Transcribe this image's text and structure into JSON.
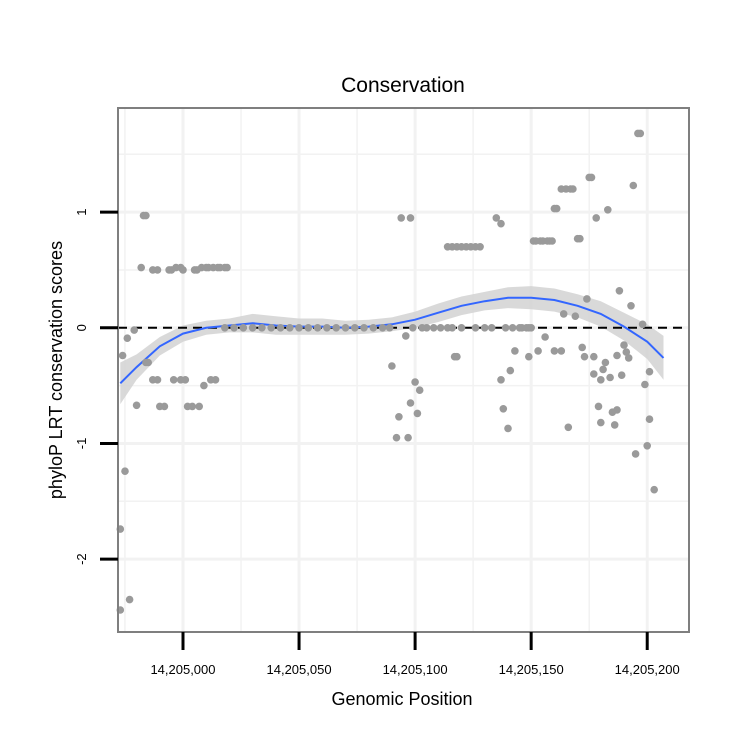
{
  "chart_data": {
    "type": "scatter",
    "title": "Conservation",
    "xlabel": "Genomic Position",
    "ylabel": "phyloP LRT conservation scores",
    "xlim": [
      14204972,
      14205218
    ],
    "ylim": [
      -2.63,
      1.9
    ],
    "xticks": [
      14205000,
      14205050,
      14205100,
      14205150,
      14205200
    ],
    "xtick_labels": [
      "14,205,000",
      "14,205,050",
      "14,205,100",
      "14,205,150",
      "14,205,200"
    ],
    "yticks": [
      -2,
      -1,
      0,
      1
    ],
    "ytick_labels": [
      "-2",
      "-1",
      "0",
      "1"
    ],
    "grid": true,
    "reference_line": {
      "y": 0,
      "style": "dashed",
      "color": "#000000"
    },
    "colors": {
      "points": "#9a9a9a",
      "smooth": "#3366ff",
      "ribbon": "#d2d2d2",
      "panel_border": "#7f7f7f",
      "grid": "#f2f2f2"
    },
    "series": [
      {
        "name": "scores",
        "kind": "points",
        "points": [
          [
            14204973,
            -1.74
          ],
          [
            14204973,
            -2.44
          ],
          [
            14204974,
            -0.24
          ],
          [
            14204975,
            -1.24
          ],
          [
            14204976,
            -0.09
          ],
          [
            14204977,
            -2.35
          ],
          [
            14204979,
            -0.02
          ],
          [
            14204980,
            -0.67
          ],
          [
            14204982,
            0.52
          ],
          [
            14204983,
            0.97
          ],
          [
            14204984,
            0.97
          ],
          [
            14204984,
            -0.3
          ],
          [
            14204985,
            -0.3
          ],
          [
            14204987,
            -0.45
          ],
          [
            14204987,
            0.5
          ],
          [
            14204989,
            0.5
          ],
          [
            14204989,
            -0.45
          ],
          [
            14204990,
            -0.68
          ],
          [
            14204992,
            -0.68
          ],
          [
            14204994,
            0.5
          ],
          [
            14204995,
            0.5
          ],
          [
            14204996,
            -0.45
          ],
          [
            14204997,
            0.52
          ],
          [
            14204999,
            0.52
          ],
          [
            14204999,
            -0.45
          ],
          [
            14205000,
            0.5
          ],
          [
            14205001,
            -0.45
          ],
          [
            14205002,
            -0.68
          ],
          [
            14205004,
            -0.68
          ],
          [
            14205005,
            0.5
          ],
          [
            14205006,
            0.5
          ],
          [
            14205007,
            -0.68
          ],
          [
            14205008,
            0.52
          ],
          [
            14205009,
            -0.5
          ],
          [
            14205010,
            0.52
          ],
          [
            14205011,
            0.52
          ],
          [
            14205012,
            -0.45
          ],
          [
            14205013,
            0.52
          ],
          [
            14205014,
            -0.45
          ],
          [
            14205015,
            0.52
          ],
          [
            14205016,
            0.52
          ],
          [
            14205018,
            0.52
          ],
          [
            14205019,
            0.52
          ],
          [
            14205018,
            0
          ],
          [
            14205022,
            0
          ],
          [
            14205026,
            0
          ],
          [
            14205030,
            0
          ],
          [
            14205034,
            0
          ],
          [
            14205038,
            0
          ],
          [
            14205042,
            0
          ],
          [
            14205046,
            0
          ],
          [
            14205050,
            0
          ],
          [
            14205054,
            0
          ],
          [
            14205058,
            0
          ],
          [
            14205062,
            0
          ],
          [
            14205066,
            0
          ],
          [
            14205070,
            0
          ],
          [
            14205074,
            0
          ],
          [
            14205078,
            0
          ],
          [
            14205082,
            0
          ],
          [
            14205086,
            0
          ],
          [
            14205089,
            0
          ],
          [
            14205090,
            -0.33
          ],
          [
            14205092,
            -0.95
          ],
          [
            14205093,
            -0.77
          ],
          [
            14205094,
            0.95
          ],
          [
            14205096,
            -0.07
          ],
          [
            14205097,
            -0.95
          ],
          [
            14205098,
            0.95
          ],
          [
            14205098,
            -0.65
          ],
          [
            14205099,
            0
          ],
          [
            14205100,
            -0.47
          ],
          [
            14205101,
            -0.74
          ],
          [
            14205102,
            -0.54
          ],
          [
            14205103,
            0
          ],
          [
            14205105,
            0
          ],
          [
            14205108,
            0
          ],
          [
            14205111,
            0
          ],
          [
            14205114,
            0
          ],
          [
            14205117,
            -0.25
          ],
          [
            14205118,
            -0.25
          ],
          [
            14205116,
            0
          ],
          [
            14205120,
            0
          ],
          [
            14205114,
            0.7
          ],
          [
            14205116,
            0.7
          ],
          [
            14205118,
            0.7
          ],
          [
            14205120,
            0.7
          ],
          [
            14205122,
            0.7
          ],
          [
            14205124,
            0.7
          ],
          [
            14205126,
            0.7
          ],
          [
            14205128,
            0.7
          ],
          [
            14205126,
            0
          ],
          [
            14205130,
            0
          ],
          [
            14205133,
            0
          ],
          [
            14205135,
            0.95
          ],
          [
            14205137,
            0.9
          ],
          [
            14205137,
            -0.45
          ],
          [
            14205138,
            -0.7
          ],
          [
            14205139,
            0
          ],
          [
            14205140,
            -0.87
          ],
          [
            14205141,
            -0.37
          ],
          [
            14205142,
            0
          ],
          [
            14205143,
            -0.2
          ],
          [
            14205145,
            0
          ],
          [
            14205146,
            0
          ],
          [
            14205148,
            0
          ],
          [
            14205149,
            0
          ],
          [
            14205149,
            -0.25
          ],
          [
            14205150,
            0
          ],
          [
            14205151,
            0.75
          ],
          [
            14205152,
            0.75
          ],
          [
            14205153,
            -0.2
          ],
          [
            14205154,
            0.75
          ],
          [
            14205155,
            0.75
          ],
          [
            14205156,
            -0.08
          ],
          [
            14205157,
            0.75
          ],
          [
            14205158,
            0.75
          ],
          [
            14205159,
            0.75
          ],
          [
            14205160,
            -0.2
          ],
          [
            14205160,
            1.03
          ],
          [
            14205161,
            1.03
          ],
          [
            14205163,
            -0.2
          ],
          [
            14205163,
            1.2
          ],
          [
            14205164,
            0.12
          ],
          [
            14205165,
            1.2
          ],
          [
            14205166,
            -0.86
          ],
          [
            14205167,
            1.2
          ],
          [
            14205168,
            1.2
          ],
          [
            14205169,
            0.1
          ],
          [
            14205170,
            0.77
          ],
          [
            14205171,
            0.77
          ],
          [
            14205172,
            -0.17
          ],
          [
            14205173,
            -0.25
          ],
          [
            14205174,
            0.25
          ],
          [
            14205175,
            1.3
          ],
          [
            14205176,
            1.3
          ],
          [
            14205177,
            -0.4
          ],
          [
            14205177,
            -0.25
          ],
          [
            14205178,
            0.95
          ],
          [
            14205179,
            -0.68
          ],
          [
            14205180,
            -0.82
          ],
          [
            14205180,
            -0.45
          ],
          [
            14205181,
            -0.36
          ],
          [
            14205182,
            -0.3
          ],
          [
            14205183,
            1.02
          ],
          [
            14205184,
            -0.43
          ],
          [
            14205185,
            -0.73
          ],
          [
            14205186,
            -0.84
          ],
          [
            14205187,
            -0.24
          ],
          [
            14205187,
            -0.71
          ],
          [
            14205188,
            0.32
          ],
          [
            14205189,
            -0.41
          ],
          [
            14205190,
            -0.15
          ],
          [
            14205191,
            -0.21
          ],
          [
            14205192,
            -0.26
          ],
          [
            14205193,
            0.19
          ],
          [
            14205194,
            1.23
          ],
          [
            14205195,
            -1.09
          ],
          [
            14205196,
            1.68
          ],
          [
            14205197,
            1.68
          ],
          [
            14205198,
            0.03
          ],
          [
            14205199,
            -0.49
          ],
          [
            14205200,
            -1.02
          ],
          [
            14205201,
            -0.79
          ],
          [
            14205201,
            -0.38
          ],
          [
            14205203,
            -1.4
          ]
        ]
      },
      {
        "name": "loess",
        "kind": "line",
        "points": [
          [
            14204973,
            -0.48
          ],
          [
            14204980,
            -0.34
          ],
          [
            14204990,
            -0.16
          ],
          [
            14205000,
            -0.05
          ],
          [
            14205010,
            0.0
          ],
          [
            14205020,
            0.02
          ],
          [
            14205030,
            0.04
          ],
          [
            14205040,
            0.02
          ],
          [
            14205050,
            0.01
          ],
          [
            14205060,
            0.01
          ],
          [
            14205070,
            0.0
          ],
          [
            14205080,
            0.01
          ],
          [
            14205090,
            0.03
          ],
          [
            14205100,
            0.07
          ],
          [
            14205110,
            0.13
          ],
          [
            14205120,
            0.19
          ],
          [
            14205130,
            0.23
          ],
          [
            14205140,
            0.26
          ],
          [
            14205150,
            0.26
          ],
          [
            14205160,
            0.24
          ],
          [
            14205170,
            0.19
          ],
          [
            14205180,
            0.12
          ],
          [
            14205190,
            0.01
          ],
          [
            14205200,
            -0.12
          ],
          [
            14205207,
            -0.26
          ]
        ]
      },
      {
        "name": "confidence band",
        "kind": "ribbon",
        "x": [
          14204973,
          14204980,
          14204990,
          14205000,
          14205010,
          14205020,
          14205030,
          14205040,
          14205050,
          14205060,
          14205070,
          14205080,
          14205090,
          14205100,
          14205110,
          14205120,
          14205130,
          14205140,
          14205150,
          14205160,
          14205170,
          14205180,
          14205190,
          14205200,
          14205207
        ],
        "lower": [
          -0.66,
          -0.45,
          -0.24,
          -0.12,
          -0.06,
          -0.04,
          -0.04,
          -0.06,
          -0.06,
          -0.06,
          -0.06,
          -0.05,
          -0.03,
          0.0,
          0.05,
          0.11,
          0.15,
          0.17,
          0.16,
          0.14,
          0.09,
          0.01,
          -0.11,
          -0.27,
          -0.45
        ],
        "upper": [
          -0.3,
          -0.23,
          -0.08,
          0.02,
          0.06,
          0.08,
          0.12,
          0.1,
          0.08,
          0.08,
          0.06,
          0.07,
          0.09,
          0.14,
          0.21,
          0.27,
          0.31,
          0.35,
          0.36,
          0.34,
          0.29,
          0.23,
          0.13,
          0.03,
          -0.07
        ]
      }
    ]
  }
}
